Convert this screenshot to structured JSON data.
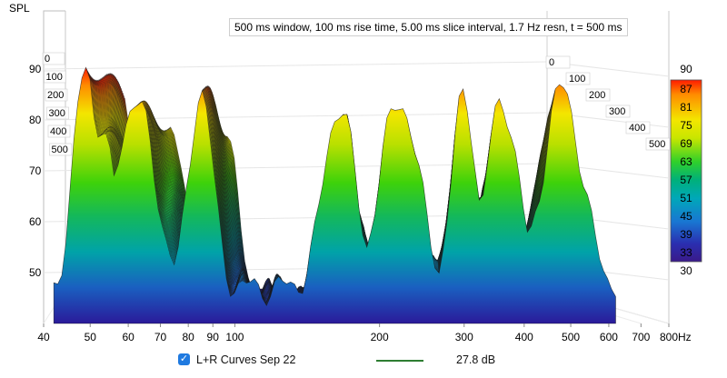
{
  "chart_data": {
    "type": "waterfall",
    "ylabel": "SPL",
    "xunit": "Hz",
    "info": "500 ms window, 100 ms rise time, 5.00 ms slice interval, 1.7 Hz resn, t = 500 ms",
    "x_ticks": [
      {
        "value": 40,
        "label": "40"
      },
      {
        "value": 50,
        "label": "50"
      },
      {
        "value": 60,
        "label": "60"
      },
      {
        "value": 70,
        "label": "70"
      },
      {
        "value": 80,
        "label": "80"
      },
      {
        "value": 90,
        "label": "90"
      },
      {
        "value": 100,
        "label": "100"
      },
      {
        "value": 200,
        "label": "200"
      },
      {
        "value": 300,
        "label": "300"
      },
      {
        "value": 400,
        "label": "400"
      },
      {
        "value": 500,
        "label": "500"
      },
      {
        "value": 600,
        "label": "600"
      },
      {
        "value": 700,
        "label": "700"
      },
      {
        "value": 800,
        "label": "800"
      }
    ],
    "x_range": [
      40,
      800
    ],
    "y_ticks": [
      "90",
      "80",
      "70",
      "60",
      "50"
    ],
    "y_range": [
      40,
      90
    ],
    "time_ticks_ms": [
      "0",
      "100",
      "200",
      "300",
      "400",
      "500"
    ],
    "colorbar": {
      "ticks": [
        "90",
        "87",
        "81",
        "75",
        "69",
        "63",
        "57",
        "51",
        "45",
        "39",
        "33",
        "30"
      ],
      "range": [
        30,
        90
      ]
    },
    "peaks": [
      {
        "freq": 49,
        "spl": 91
      },
      {
        "freq": 52,
        "spl": 79
      },
      {
        "freq": 62,
        "spl": 84
      },
      {
        "freq": 85,
        "spl": 86
      },
      {
        "freq": 165,
        "spl": 83
      },
      {
        "freq": 220,
        "spl": 84
      },
      {
        "freq": 300,
        "spl": 85
      },
      {
        "freq": 360,
        "spl": 84
      },
      {
        "freq": 480,
        "spl": 86
      }
    ],
    "series": [
      {
        "name": "L+R Curves Sep 22",
        "offset_label": "27.8 dB",
        "color": "#2e7d32"
      }
    ]
  },
  "legend": {
    "checkbox_mark": "✓",
    "name": "L+R Curves Sep 22",
    "offset": "27.8 dB"
  }
}
